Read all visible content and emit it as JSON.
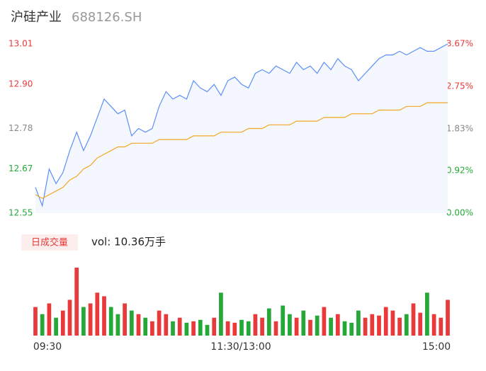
{
  "chart_data": {
    "type": "intraday",
    "title": "沪硅产业",
    "subtitle": "688126.SH",
    "x_labels": [
      "09:30",
      "11:30/13:00",
      "15:00"
    ],
    "ylim": [
      12.55,
      13.01
    ],
    "yticks": [
      13.01,
      {
        "value": 12.9,
        "label": "12.90"
      },
      12.78,
      12.67,
      12.55
    ],
    "y2lim": [
      0,
      3.67
    ],
    "y2ticks": [
      {
        "value": 3.67,
        "label": "3.67%"
      },
      {
        "value": 2.75,
        "label": "2.75%"
      },
      {
        "value": 1.83,
        "label": "1.83%"
      },
      {
        "value": 0.92,
        "label": "0.92%"
      },
      {
        "value": 0,
        "label": "0.00%"
      }
    ],
    "ytick_colors": [
      "#e83a3a",
      "#e83a3a",
      "#888888",
      "#25a838",
      "#25a838"
    ],
    "series": [
      {
        "name": "price",
        "color": "#5b8ff9",
        "values": [
          12.62,
          12.57,
          12.67,
          12.63,
          12.66,
          12.72,
          12.77,
          12.72,
          12.76,
          12.81,
          12.86,
          12.84,
          12.82,
          12.83,
          12.76,
          12.78,
          12.77,
          12.78,
          12.84,
          12.88,
          12.86,
          12.87,
          12.86,
          12.91,
          12.89,
          12.88,
          12.9,
          12.87,
          12.91,
          12.92,
          12.9,
          12.89,
          12.93,
          12.94,
          12.93,
          12.95,
          12.94,
          12.93,
          12.96,
          12.94,
          12.95,
          12.93,
          12.96,
          12.94,
          12.97,
          12.95,
          12.94,
          12.91,
          12.93,
          12.95,
          12.97,
          12.98,
          12.98,
          12.99,
          12.98,
          12.99,
          13.0,
          12.99,
          12.99,
          13.0,
          13.01
        ]
      },
      {
        "name": "average",
        "color": "#f5a623",
        "values": [
          12.6,
          12.59,
          12.6,
          12.61,
          12.62,
          12.64,
          12.65,
          12.67,
          12.68,
          12.7,
          12.71,
          12.72,
          12.73,
          12.73,
          12.74,
          12.74,
          12.74,
          12.74,
          12.75,
          12.75,
          12.75,
          12.75,
          12.75,
          12.76,
          12.76,
          12.76,
          12.76,
          12.77,
          12.77,
          12.77,
          12.77,
          12.78,
          12.78,
          12.78,
          12.79,
          12.79,
          12.79,
          12.79,
          12.8,
          12.8,
          12.8,
          12.8,
          12.81,
          12.81,
          12.81,
          12.81,
          12.82,
          12.82,
          12.82,
          12.82,
          12.83,
          12.83,
          12.83,
          12.83,
          12.84,
          12.84,
          12.84,
          12.85,
          12.85,
          12.85,
          12.85
        ]
      }
    ],
    "volume": {
      "title": "日成交量",
      "label": "vol: 10.36万手",
      "up_color": "#e83a3a",
      "down_color": "#25a838",
      "values": [
        40,
        30,
        45,
        25,
        35,
        50,
        95,
        40,
        45,
        60,
        55,
        40,
        30,
        45,
        35,
        30,
        25,
        20,
        35,
        30,
        20,
        25,
        18,
        20,
        22,
        15,
        25,
        60,
        20,
        18,
        22,
        20,
        30,
        25,
        38,
        20,
        42,
        30,
        25,
        35,
        22,
        28,
        40,
        25,
        30,
        20,
        18,
        35,
        25,
        30,
        28,
        40,
        35,
        25,
        30,
        45,
        32,
        60,
        30,
        25,
        50
      ]
    }
  }
}
